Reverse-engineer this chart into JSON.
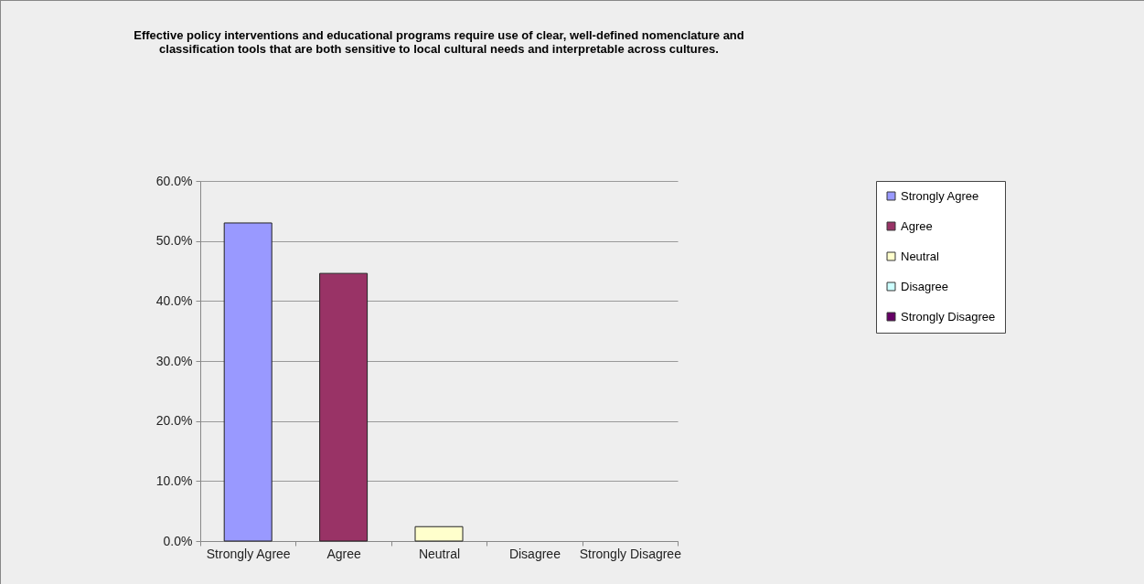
{
  "chart_data": {
    "type": "bar",
    "title": "Effective policy interventions and educational programs require use of clear, well-defined nomenclature and classification tools that are both sensitive to local cultural needs and interpretable across cultures.",
    "categories": [
      "Strongly Agree",
      "Agree",
      "Neutral",
      "Disagree",
      "Strongly Disagree"
    ],
    "stacked": true,
    "series": [
      {
        "name": "Strongly Agree",
        "color": "#9999ff",
        "values": [
          53.0,
          null,
          null,
          null,
          null
        ]
      },
      {
        "name": "Agree",
        "color": "#993366",
        "values": [
          null,
          44.6,
          null,
          null,
          null
        ]
      },
      {
        "name": "Neutral",
        "color": "#ffffcc",
        "values": [
          null,
          null,
          2.4,
          null,
          null
        ]
      },
      {
        "name": "Disagree",
        "color": "#ccffff",
        "values": [
          null,
          null,
          null,
          0,
          null
        ]
      },
      {
        "name": "Strongly Disagree",
        "color": "#660066",
        "values": [
          null,
          null,
          null,
          null,
          0
        ]
      }
    ],
    "ylim": [
      0,
      60
    ],
    "yticks": [
      {
        "value": 0,
        "label": "0.0%"
      },
      {
        "value": 10,
        "label": "10.0%"
      },
      {
        "value": 20,
        "label": "20.0%"
      },
      {
        "value": 30,
        "label": "30.0%"
      },
      {
        "value": 40,
        "label": "40.0%"
      },
      {
        "value": 50,
        "label": "50.0%"
      },
      {
        "value": 60,
        "label": "60.0%"
      }
    ],
    "grid": "y",
    "legend": "right"
  }
}
